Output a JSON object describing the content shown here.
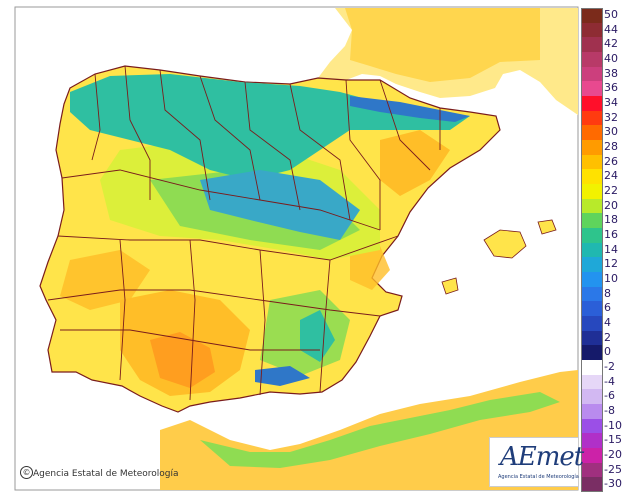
{
  "credit": "Agencia Estatal de Meteorología",
  "copyright_symbol": "©",
  "logo": {
    "text": "AEmet",
    "subtitle": "Agencia Estatal de Meteorología"
  },
  "legend": [
    {
      "label": "50",
      "color": "#7b2b1b"
    },
    {
      "label": "44",
      "color": "#8e2c33"
    },
    {
      "label": "42",
      "color": "#a0314f"
    },
    {
      "label": "40",
      "color": "#b83a68"
    },
    {
      "label": "38",
      "color": "#cc3f7d"
    },
    {
      "label": "36",
      "color": "#e8498f"
    },
    {
      "label": "34",
      "color": "#ff0f2a"
    },
    {
      "label": "32",
      "color": "#ff3b10"
    },
    {
      "label": "30",
      "color": "#ff6a00"
    },
    {
      "label": "28",
      "color": "#ff9b00"
    },
    {
      "label": "26",
      "color": "#ffc000"
    },
    {
      "label": "24",
      "color": "#ffe200"
    },
    {
      "label": "22",
      "color": "#f2f200"
    },
    {
      "label": "20",
      "color": "#b8ea2a"
    },
    {
      "label": "18",
      "color": "#5fd45c"
    },
    {
      "label": "16",
      "color": "#2ec48c"
    },
    {
      "label": "14",
      "color": "#20b8b0"
    },
    {
      "label": "12",
      "color": "#1fa8d8"
    },
    {
      "label": "10",
      "color": "#2393ef"
    },
    {
      "label": "8",
      "color": "#2b78e8"
    },
    {
      "label": "6",
      "color": "#2b5fd8"
    },
    {
      "label": "4",
      "color": "#2748be"
    },
    {
      "label": "2",
      "color": "#1f2f96"
    },
    {
      "label": "0",
      "color": "#151a6a"
    },
    {
      "label": "-2",
      "color": "#ffffff"
    },
    {
      "label": "-4",
      "color": "#e6d7f7"
    },
    {
      "label": "-6",
      "color": "#d2b8f2"
    },
    {
      "label": "-8",
      "color": "#b98bee"
    },
    {
      "label": "-10",
      "color": "#9b4fe7"
    },
    {
      "label": "-15",
      "color": "#b030c8"
    },
    {
      "label": "-20",
      "color": "#cc22a8"
    },
    {
      "label": "-25",
      "color": "#a0307f"
    },
    {
      "label": "-30",
      "color": "#7a2e64"
    }
  ],
  "colors": {
    "sea": "#ffffff",
    "france": "#ffe98a",
    "africa": "#ffcc4a",
    "border": "#7a1c1c",
    "hot": "#ff9e1f",
    "warm": "#ffbe28",
    "mild": "#ffe44a",
    "yellowgreen": "#dcef3a",
    "green": "#8fdc52",
    "teal": "#2fbfa1",
    "cool": "#39a8c7",
    "cold": "#2f77c8"
  }
}
